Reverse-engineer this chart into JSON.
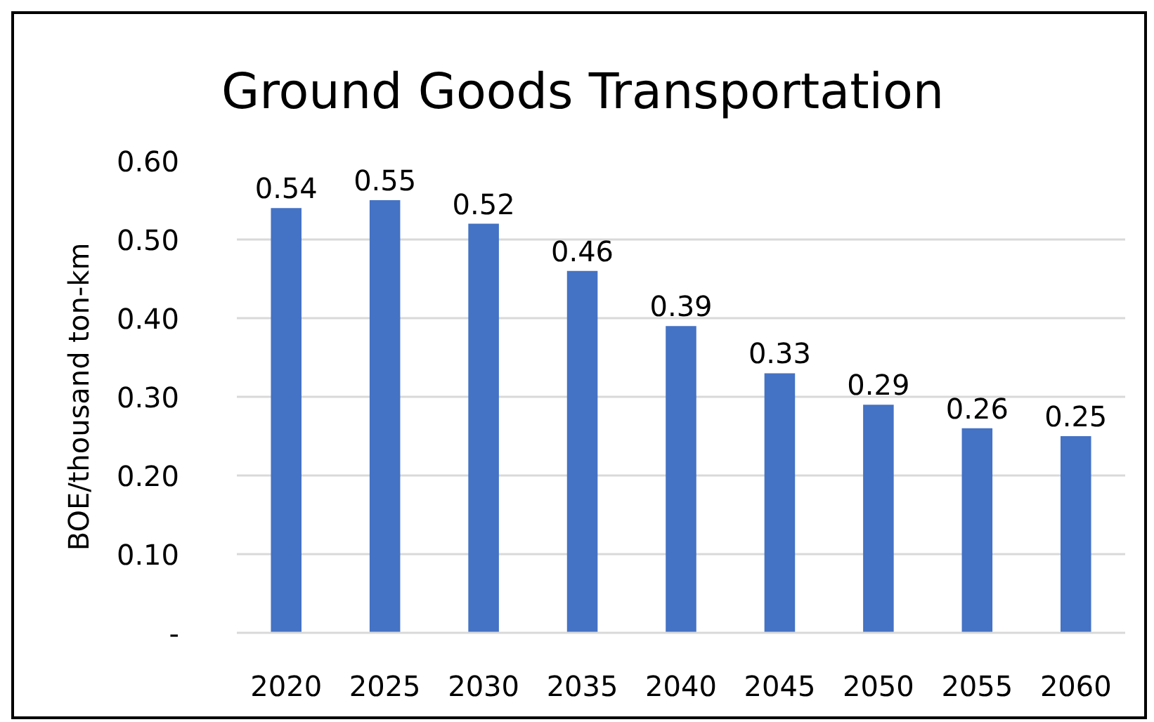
{
  "chart_data": {
    "type": "bar",
    "title": "Ground Goods Transportation",
    "ylabel": "BOE/thousand ton-km",
    "categories": [
      "2020",
      "2025",
      "2030",
      "2035",
      "2040",
      "2045",
      "2050",
      "2055",
      "2060"
    ],
    "values": [
      0.54,
      0.55,
      0.52,
      0.46,
      0.39,
      0.33,
      0.29,
      0.26,
      0.25
    ],
    "color": "#4472c4",
    "ylim": [
      0,
      0.6
    ],
    "yticks": [
      {
        "value": 0,
        "label": "-"
      },
      {
        "value": 0.1,
        "label": "0.10"
      },
      {
        "value": 0.2,
        "label": "0.20"
      },
      {
        "value": 0.3,
        "label": "0.30"
      },
      {
        "value": 0.4,
        "label": "0.40"
      },
      {
        "value": 0.5,
        "label": "0.50"
      },
      {
        "value": 0.6,
        "label": "0.60"
      }
    ],
    "grid": "y",
    "data_labels": true
  }
}
